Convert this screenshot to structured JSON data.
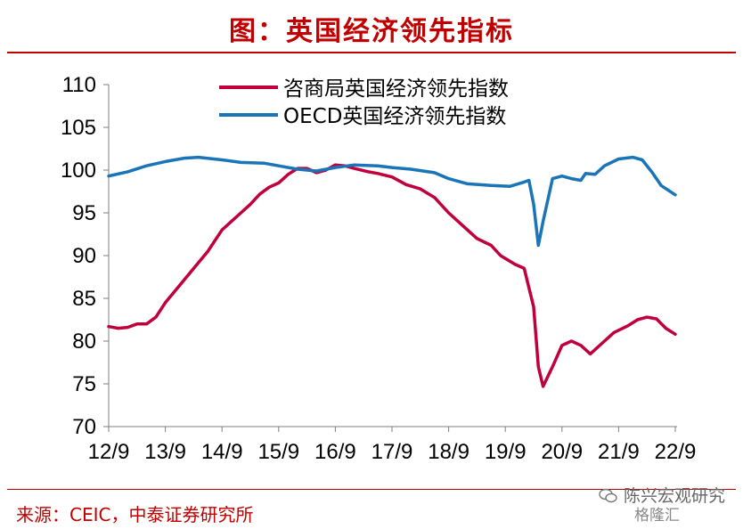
{
  "header": {
    "title": "图：英国经济领先指标"
  },
  "source": "来源：CEIC，中泰证券研究所",
  "watermark": {
    "account": "陈兴宏观研究",
    "brand": "格隆汇"
  },
  "colors": {
    "accent": "#c00000",
    "series_red": "#c0003c",
    "series_blue": "#1a75b8"
  },
  "chart_data": {
    "type": "line",
    "xlabel": "",
    "ylabel": "",
    "ylim": [
      70,
      110
    ],
    "yticks": [
      70,
      75,
      80,
      85,
      90,
      95,
      100,
      105,
      110
    ],
    "xlim": [
      "2012-09",
      "2022-09"
    ],
    "xtick_labels": [
      "12/9",
      "13/9",
      "14/9",
      "15/9",
      "16/9",
      "17/9",
      "18/9",
      "19/9",
      "20/9",
      "21/9",
      "22/9"
    ],
    "legend_position": "top-center",
    "grid": false,
    "series": [
      {
        "name": "咨商局英国经济领先指数",
        "color": "#c0003c",
        "points": [
          [
            "2012-09",
            81.7
          ],
          [
            "2012-11",
            81.5
          ],
          [
            "2013-01",
            81.6
          ],
          [
            "2013-03",
            82.0
          ],
          [
            "2013-05",
            82.0
          ],
          [
            "2013-07",
            82.8
          ],
          [
            "2013-09",
            84.5
          ],
          [
            "2013-12",
            86.5
          ],
          [
            "2014-03",
            88.5
          ],
          [
            "2014-06",
            90.5
          ],
          [
            "2014-09",
            93.0
          ],
          [
            "2014-11",
            94.0
          ],
          [
            "2015-01",
            95.0
          ],
          [
            "2015-03",
            96.0
          ],
          [
            "2015-05",
            97.2
          ],
          [
            "2015-07",
            98.0
          ],
          [
            "2015-09",
            98.5
          ],
          [
            "2015-11",
            99.5
          ],
          [
            "2016-01",
            100.2
          ],
          [
            "2016-03",
            100.2
          ],
          [
            "2016-05",
            99.7
          ],
          [
            "2016-07",
            100.0
          ],
          [
            "2016-09",
            100.6
          ],
          [
            "2016-11",
            100.5
          ],
          [
            "2017-01",
            100.2
          ],
          [
            "2017-04",
            99.8
          ],
          [
            "2017-06",
            99.6
          ],
          [
            "2017-09",
            99.2
          ],
          [
            "2017-12",
            98.3
          ],
          [
            "2018-03",
            97.8
          ],
          [
            "2018-06",
            96.8
          ],
          [
            "2018-09",
            95.0
          ],
          [
            "2018-12",
            93.5
          ],
          [
            "2019-03",
            92.0
          ],
          [
            "2019-06",
            91.2
          ],
          [
            "2019-08",
            90.0
          ],
          [
            "2019-11",
            89.0
          ],
          [
            "2020-01",
            88.5
          ],
          [
            "2020-03",
            84.0
          ],
          [
            "2020-04",
            77.0
          ],
          [
            "2020-05",
            74.7
          ],
          [
            "2020-07",
            77.0
          ],
          [
            "2020-09",
            79.5
          ],
          [
            "2020-11",
            80.0
          ],
          [
            "2021-01",
            79.5
          ],
          [
            "2021-03",
            78.5
          ],
          [
            "2021-06",
            80.0
          ],
          [
            "2021-08",
            81.0
          ],
          [
            "2021-11",
            81.8
          ],
          [
            "2022-01",
            82.5
          ],
          [
            "2022-03",
            82.8
          ],
          [
            "2022-05",
            82.6
          ],
          [
            "2022-07",
            81.5
          ],
          [
            "2022-09",
            80.8
          ]
        ]
      },
      {
        "name": "OECD英国经济领先指数",
        "color": "#1a75b8",
        "points": [
          [
            "2012-09",
            99.3
          ],
          [
            "2013-01",
            99.8
          ],
          [
            "2013-05",
            100.5
          ],
          [
            "2013-09",
            101.0
          ],
          [
            "2014-01",
            101.4
          ],
          [
            "2014-04",
            101.5
          ],
          [
            "2014-09",
            101.2
          ],
          [
            "2015-01",
            100.9
          ],
          [
            "2015-06",
            100.8
          ],
          [
            "2015-09",
            100.5
          ],
          [
            "2016-01",
            100.1
          ],
          [
            "2016-05",
            99.9
          ],
          [
            "2016-09",
            100.3
          ],
          [
            "2017-01",
            100.6
          ],
          [
            "2017-06",
            100.5
          ],
          [
            "2017-09",
            100.3
          ],
          [
            "2018-01",
            100.1
          ],
          [
            "2018-06",
            99.7
          ],
          [
            "2018-09",
            99.0
          ],
          [
            "2019-01",
            98.4
          ],
          [
            "2019-06",
            98.2
          ],
          [
            "2019-10",
            98.1
          ],
          [
            "2020-01",
            98.6
          ],
          [
            "2020-02",
            98.8
          ],
          [
            "2020-03",
            96.0
          ],
          [
            "2020-04",
            91.2
          ],
          [
            "2020-05",
            94.0
          ],
          [
            "2020-07",
            99.0
          ],
          [
            "2020-09",
            99.3
          ],
          [
            "2020-11",
            99.0
          ],
          [
            "2021-01",
            98.8
          ],
          [
            "2021-02",
            99.6
          ],
          [
            "2021-04",
            99.5
          ],
          [
            "2021-06",
            100.5
          ],
          [
            "2021-09",
            101.3
          ],
          [
            "2021-12",
            101.5
          ],
          [
            "2022-02",
            101.2
          ],
          [
            "2022-04",
            99.8
          ],
          [
            "2022-06",
            98.2
          ],
          [
            "2022-09",
            97.1
          ]
        ]
      }
    ]
  }
}
